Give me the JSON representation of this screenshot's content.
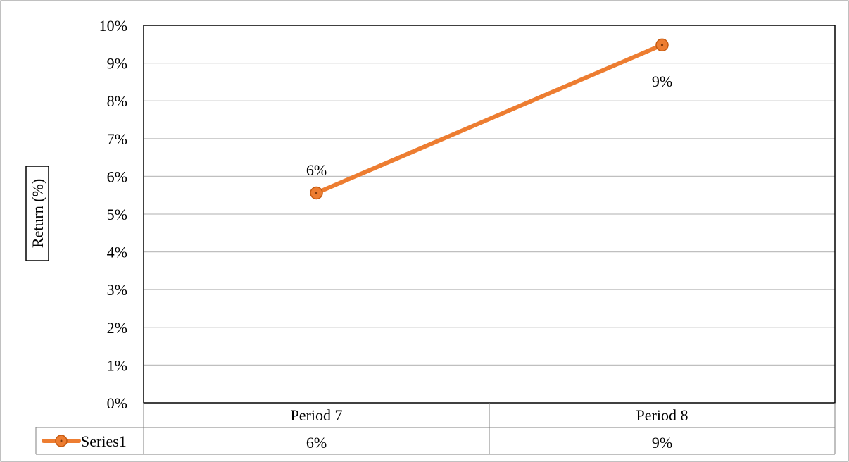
{
  "chart_data": {
    "type": "line",
    "categories": [
      "Period 7",
      "Period 8"
    ],
    "series": [
      {
        "name": "Series1",
        "values": [
          5.56,
          9.48
        ],
        "data_labels": [
          "6%",
          "9%"
        ],
        "table_values": [
          "6%",
          "9%"
        ]
      }
    ],
    "ylabel": "Return (%)",
    "ylim": [
      0,
      10
    ],
    "yticks": [
      0,
      1,
      2,
      3,
      4,
      5,
      6,
      7,
      8,
      9,
      10
    ],
    "ytick_labels": [
      "0%",
      "1%",
      "2%",
      "3%",
      "4%",
      "5%",
      "6%",
      "7%",
      "8%",
      "9%",
      "10%"
    ],
    "grid": true,
    "legend": "data-table",
    "colors": {
      "series": "#ED7D31",
      "grid": "#BFBFBF",
      "axis": "#000000",
      "table_border": "#808080"
    }
  }
}
